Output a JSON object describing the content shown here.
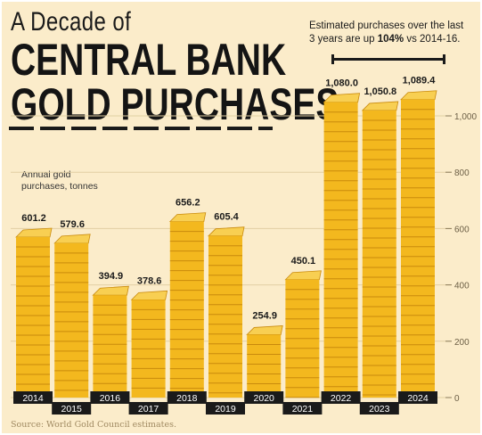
{
  "title": {
    "line1": "A Decade of",
    "line2": "CENTRAL BANK",
    "line3": "GOLD PURCHASES"
  },
  "annotation": {
    "before": "Estimated purchases over the last 3 years are up ",
    "highlight": "104%",
    "after": " vs 2014-16."
  },
  "source": "Source: World Gold Council estimates.",
  "colors": {
    "background": "#fbecca",
    "gold": "#f3b81e",
    "gold_dark": "#c98a0c",
    "ink": "#1a1a1a"
  },
  "chart_data": {
    "type": "bar",
    "title": "A Decade of CENTRAL BANK GOLD PURCHASES",
    "ylabel": "Annual gold purchases, tonnes",
    "categories": [
      "2014",
      "2015",
      "2016",
      "2017",
      "2018",
      "2019",
      "2020",
      "2021",
      "2022",
      "2023",
      "2024"
    ],
    "values": [
      601.2,
      579.6,
      394.9,
      378.6,
      656.2,
      605.4,
      254.9,
      450.1,
      1080.0,
      1050.8,
      1089.4
    ],
    "value_labels": [
      "601.2",
      "579.6",
      "394.9",
      "378.6",
      "656.2",
      "605.4",
      "254.9",
      "450.1",
      "1,080.0",
      "1,050.8",
      "1,089.4"
    ],
    "ylim": [
      0,
      1000
    ],
    "yticks": [
      0,
      200,
      400,
      600,
      800,
      1000
    ],
    "ytick_labels": [
      "0",
      "200",
      "400",
      "600",
      "800",
      "1,000"
    ],
    "grid": true,
    "axis_position": "right"
  }
}
